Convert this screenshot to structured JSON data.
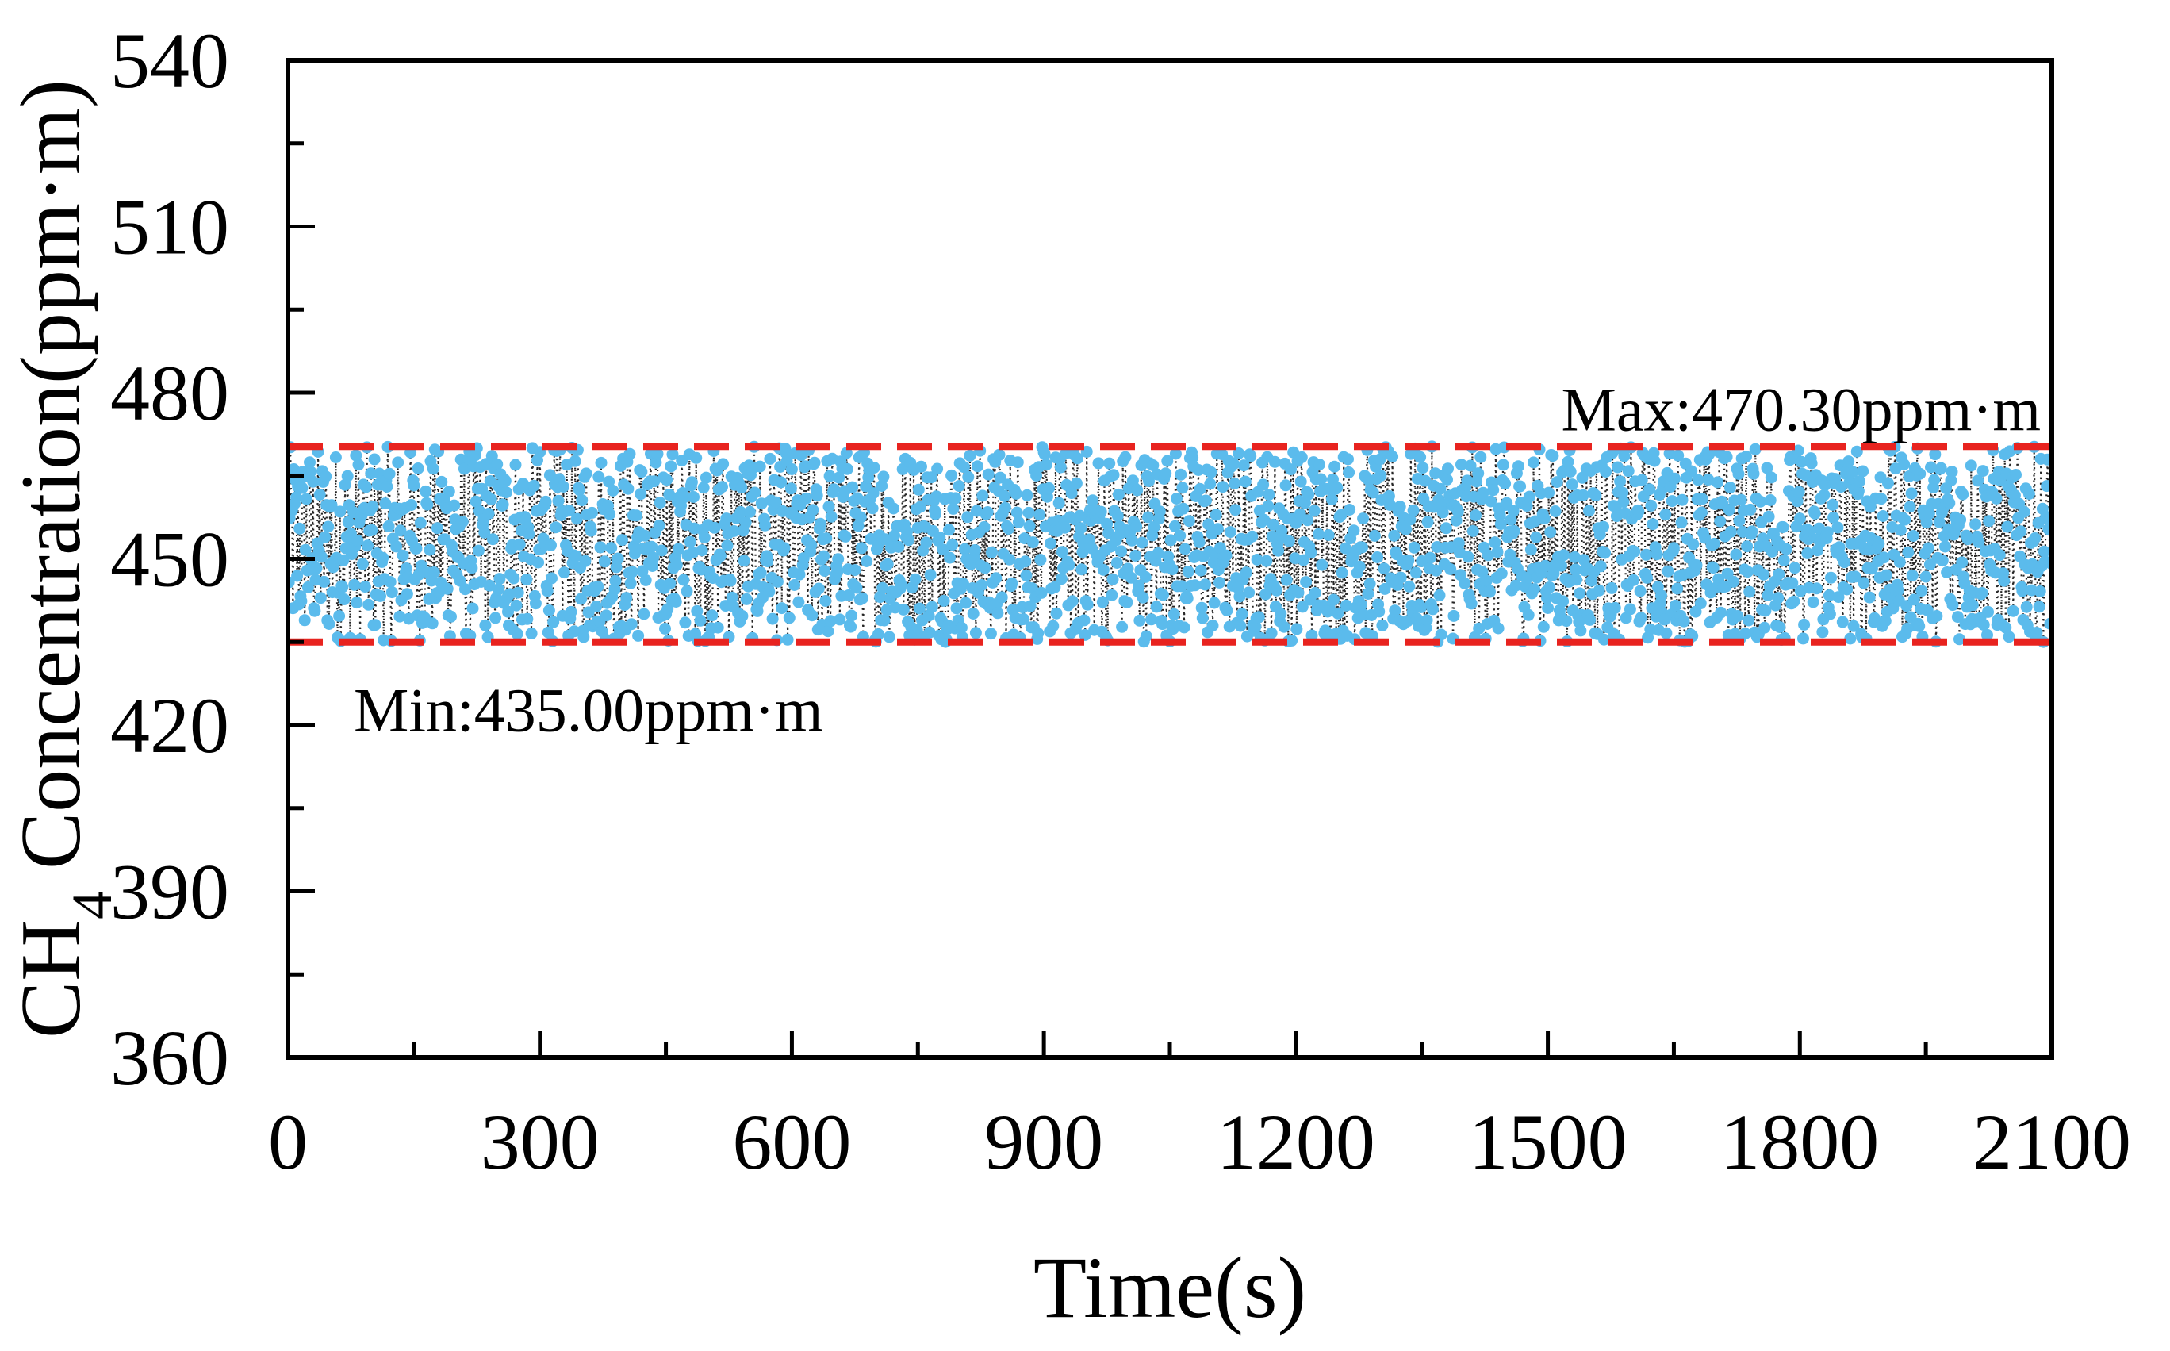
{
  "chart_data": {
    "type": "scatter",
    "title": "",
    "xlabel": "Time(s)",
    "ylabel": {
      "prefix": "CH",
      "subscript": "4",
      "suffix": " Concentration(ppm·m)"
    },
    "xlim": [
      0,
      2100
    ],
    "ylim": [
      360,
      540
    ],
    "x_ticks": [
      0,
      300,
      600,
      900,
      1200,
      1500,
      1800,
      2100
    ],
    "x_tick_labels": [
      "0",
      "300",
      "600",
      "900",
      "1200",
      "1500",
      "1800",
      "2100"
    ],
    "y_ticks": [
      360,
      390,
      420,
      450,
      480,
      510,
      540
    ],
    "y_tick_labels": [
      "360",
      "390",
      "420",
      "450",
      "480",
      "510",
      "540"
    ],
    "grid": false,
    "series": [
      {
        "name": "CH4 concentration",
        "marker": "circle",
        "color": "#5bbbec",
        "connector_color": "#000000",
        "connector_style": "dotted",
        "x_start": 0,
        "x_end": 2100,
        "sample_interval_s": 1,
        "value_range": [
          435.0,
          470.3
        ],
        "values": "dense random samples between min and max (approx. 2100 points)"
      }
    ],
    "reference_lines": [
      {
        "name": "max-line",
        "value": 470.3,
        "label": "Max:470.30ppm·m",
        "color": "#e8231f",
        "style": "dashed"
      },
      {
        "name": "min-line",
        "value": 435.0,
        "label": "Min:435.00ppm·m",
        "color": "#e8231f",
        "style": "dashed"
      }
    ]
  }
}
